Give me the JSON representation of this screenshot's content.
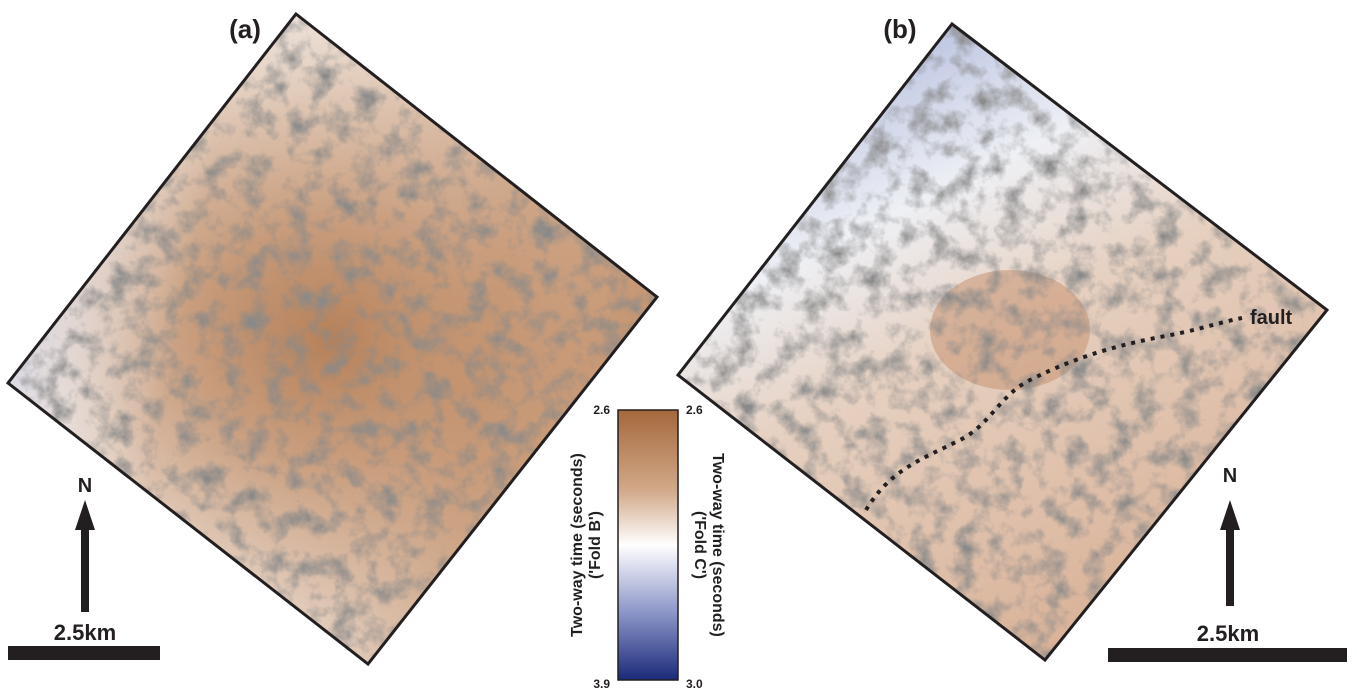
{
  "panels": [
    {
      "label": "(a)",
      "north": "N",
      "scale": "2.5km"
    },
    {
      "label": "(b)",
      "north": "N",
      "scale": "2.5km",
      "annotation": "fault"
    }
  ],
  "colorbar": {
    "left_label": [
      "Two-way time (seconds)",
      "('Fold B')"
    ],
    "left_top": "2.6",
    "left_bottom": "3.9",
    "right_label": [
      "Two-way time (seconds)",
      "('Fold C')"
    ],
    "right_top": "2.6",
    "right_bottom": "3.0"
  }
}
